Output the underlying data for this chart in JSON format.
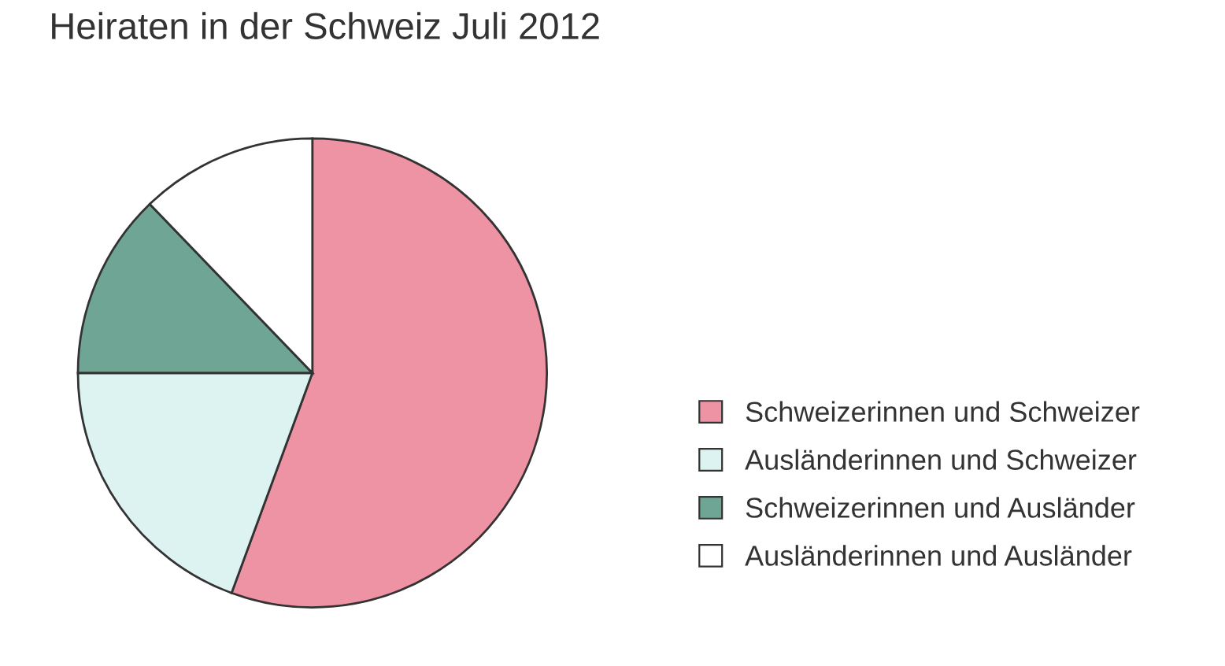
{
  "chart_data": {
    "type": "pie",
    "title": "Heiraten in der Schweiz Juli 2012",
    "categories": [
      "Schweizerinnen und Schweizer",
      "Ausländerinnen und Schweizer",
      "Schweizerinnen und Ausländer",
      "Ausländerinnen und Ausländer"
    ],
    "values": [
      55.6,
      19.4,
      12.8,
      12.2
    ],
    "colors": [
      "#ee93a3",
      "#dcf3f1",
      "#6fa595",
      "#ffffff"
    ],
    "legend": "right"
  }
}
